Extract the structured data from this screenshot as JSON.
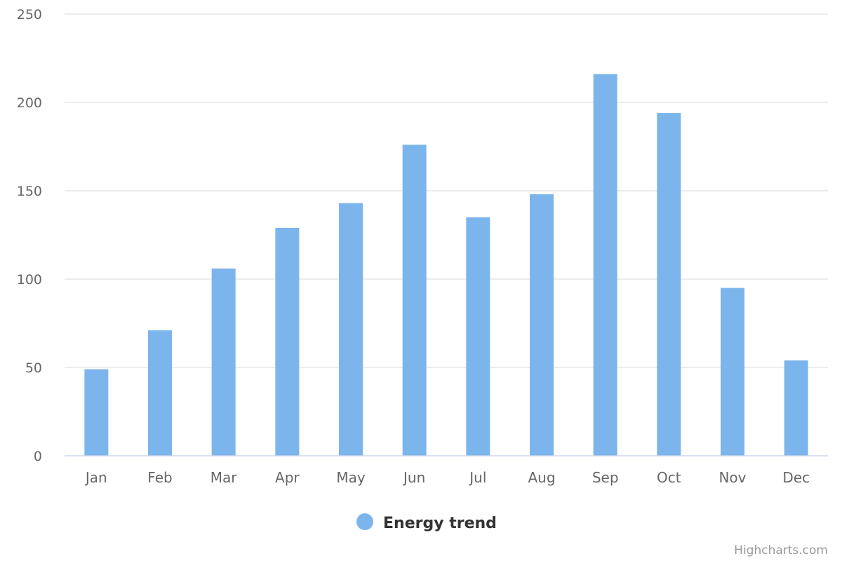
{
  "chart_data": {
    "type": "bar",
    "categories": [
      "Jan",
      "Feb",
      "Mar",
      "Apr",
      "May",
      "Jun",
      "Jul",
      "Aug",
      "Sep",
      "Oct",
      "Nov",
      "Dec"
    ],
    "series": [
      {
        "name": "Energy trend",
        "color": "#7cb5ec",
        "values": [
          49,
          71,
          106,
          129,
          143,
          176,
          135,
          148,
          216,
          194,
          95,
          54
        ]
      }
    ],
    "yticks": [
      "0",
      "50",
      "100",
      "150",
      "200",
      "250"
    ],
    "ylim": [
      0,
      250
    ],
    "grid": true,
    "legend": "bottom-center"
  },
  "credits": "Highcharts.com",
  "colors": {
    "grid": "#e6e6e6",
    "axis": "#ccd6eb",
    "tick_text": "#666666",
    "credits": "#999999"
  }
}
